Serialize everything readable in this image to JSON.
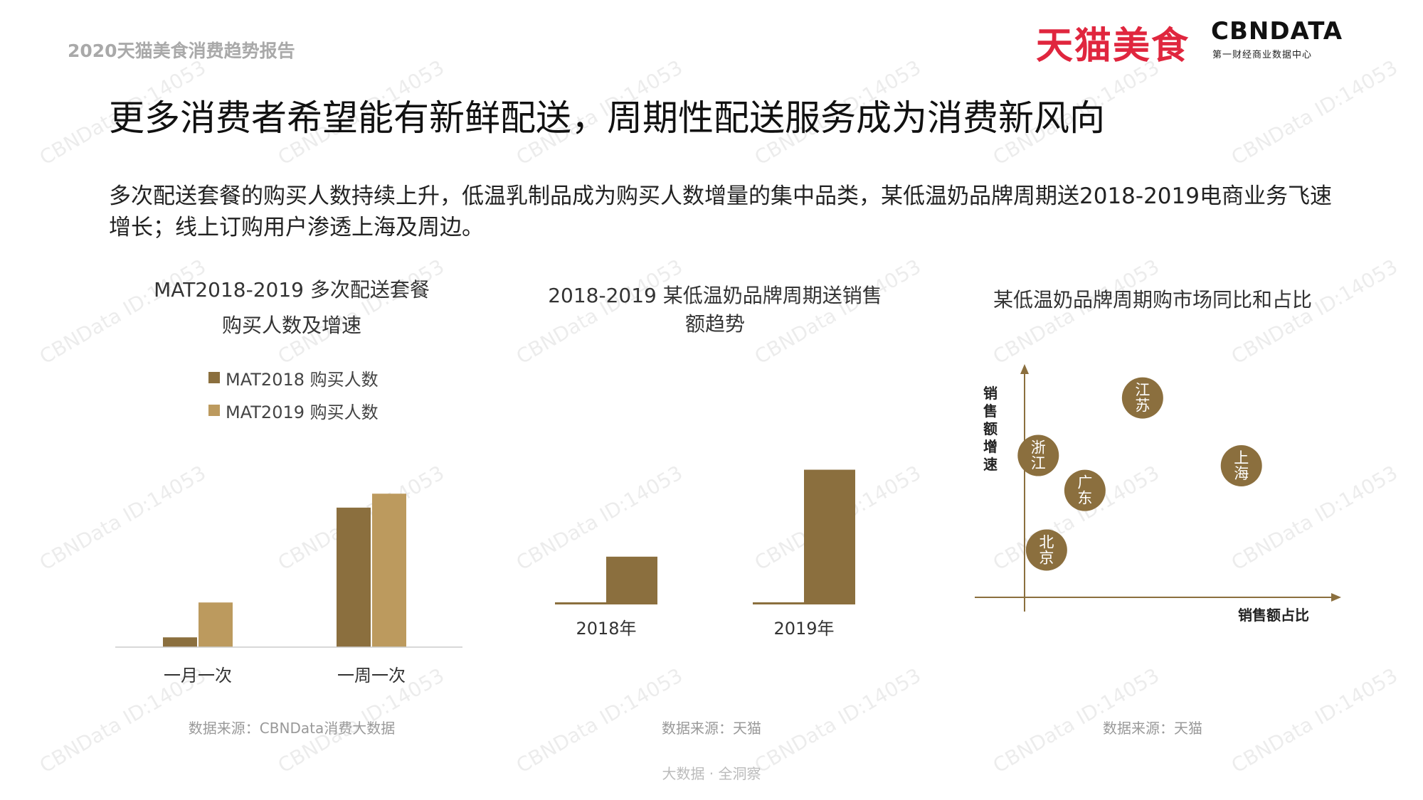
{
  "header": {
    "report_label": "2020天猫美食消费趋势报告",
    "brand_tmall": "天猫美食",
    "brand_cbn": "CBNDATA",
    "brand_cbn_sub": "第一财经商业数据中心"
  },
  "headline": "更多消费者希望能有新鲜配送，周期性配送服务成为消费新风向",
  "subtitle": "多次配送套餐的购买人数持续上升，低温乳制品成为购买人数增量的集中品类，某低温奶品牌周期送2018-2019电商业务飞速增长；线上订购用户渗透上海及周边。",
  "watermark": "CBNData ID:14053",
  "footer": "大数据 · 全洞察",
  "colors": {
    "dark": "#8b6f3e",
    "light": "#bc9a5e",
    "axis": "#8b6f3e"
  },
  "chart_data": [
    {
      "type": "bar",
      "title_line1": "MAT2018-2019 多次配送套餐",
      "title_line2": "购买人数及增速",
      "categories": [
        "一月一次",
        "一周一次"
      ],
      "series": [
        {
          "name": "MAT2018 购买人数",
          "values": [
            0.07,
            1.0
          ]
        },
        {
          "name": "MAT2019 购买人数",
          "values": [
            0.32,
            1.1
          ]
        }
      ],
      "ylim": [
        0,
        1.3
      ],
      "source": "数据来源：CBNData消费大数据"
    },
    {
      "type": "bar",
      "title_line1": "2018-2019 某低温奶品牌周期送销售",
      "title_line2": "额趋势",
      "categories": [
        "2018年",
        "2019年"
      ],
      "series": [
        {
          "values": [
            0.02,
            0.02
          ]
        },
        {
          "values": [
            0.5,
            1.41
          ]
        }
      ],
      "ylim": [
        0,
        1.6
      ],
      "source": "数据来源：天猫"
    },
    {
      "type": "scatter",
      "title": "某低温奶品牌周期购市场同比和占比",
      "xlabel": "销售额占比",
      "ylabel": "销售额增速",
      "points": [
        {
          "label": "江苏",
          "x": 0.38,
          "y": 0.92
        },
        {
          "label": "浙江",
          "x": 0.0,
          "y": 0.64
        },
        {
          "label": "上海",
          "x": 0.74,
          "y": 0.59
        },
        {
          "label": "广东",
          "x": 0.17,
          "y": 0.47
        },
        {
          "label": "北京",
          "x": 0.03,
          "y": 0.18
        }
      ],
      "xlim": [
        -0.05,
        1
      ],
      "ylim": [
        -0.05,
        1.05
      ],
      "source": "数据来源：天猫"
    }
  ]
}
